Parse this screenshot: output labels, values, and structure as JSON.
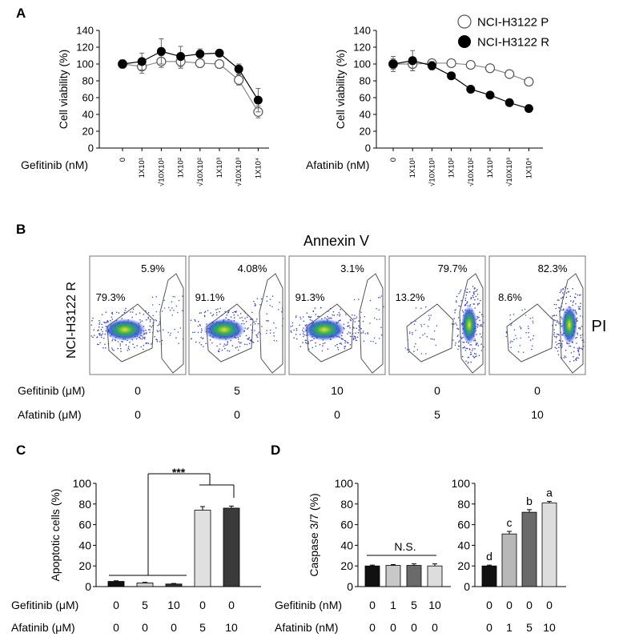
{
  "panel_labels": [
    "A",
    "B",
    "C",
    "D"
  ],
  "chart_data": [
    {
      "id": "A-left",
      "type": "line",
      "ylabel": "Cell viability (%)",
      "xlabel": "Gefitinib (nM)",
      "ylim": [
        0,
        140
      ],
      "yticks": [
        "0",
        "20",
        "40",
        "60",
        "80",
        "100",
        "120",
        "140"
      ],
      "categories": [
        "0",
        "1X10¹",
        "√10X10¹",
        "1X10²",
        "√10X10²",
        "1X10³",
        "√10X10³",
        "1X10⁴"
      ],
      "series": [
        {
          "name": "NCI-H3122 P",
          "marker": "open",
          "values": [
            100,
            97,
            103,
            103,
            101,
            100,
            81,
            43
          ],
          "errors": [
            5,
            8,
            7,
            8,
            5,
            3,
            6,
            7
          ]
        },
        {
          "name": "NCI-H3122 R",
          "marker": "filled",
          "values": [
            100,
            103,
            115,
            109,
            112,
            113,
            94,
            57
          ],
          "errors": [
            5,
            10,
            15,
            12,
            6,
            4,
            6,
            14
          ]
        }
      ]
    },
    {
      "id": "A-right",
      "type": "line",
      "ylabel": "Cell viability (%)",
      "xlabel": "Afatinib (nM)",
      "ylim": [
        0,
        140
      ],
      "yticks": [
        "0",
        "20",
        "40",
        "60",
        "80",
        "100",
        "120",
        "140"
      ],
      "categories": [
        "0",
        "1X10¹",
        "√10X10¹",
        "1X10²",
        "√10X10²",
        "1X10³",
        "√10X10³",
        "1X10⁴"
      ],
      "legend": [
        "NCI-H3122 P",
        "NCI-H3122 R"
      ],
      "series": [
        {
          "name": "NCI-H3122 P",
          "marker": "open",
          "values": [
            100,
            100,
            101,
            101,
            99,
            95,
            88,
            79
          ],
          "errors": [
            9,
            8,
            4,
            3,
            3,
            3,
            3,
            3
          ]
        },
        {
          "name": "NCI-H3122 R",
          "marker": "filled",
          "values": [
            100,
            104,
            98,
            86,
            70,
            63,
            54,
            47
          ],
          "errors": [
            6,
            12,
            5,
            4,
            3,
            3,
            3,
            3
          ]
        }
      ]
    },
    {
      "id": "B",
      "type": "scatter",
      "title": "Annexin V",
      "row_label": "NCI-H3122 R",
      "right_label": "PI",
      "condition_labels": [
        "Gefitinib (μM)",
        "Afatinib (μM)"
      ],
      "plots": [
        {
          "gefitinib": "0",
          "afatinib": "0",
          "upper_pct": "5.9%",
          "lower_pct": "79.3%",
          "cluster": "left"
        },
        {
          "gefitinib": "5",
          "afatinib": "0",
          "upper_pct": "4.08%",
          "lower_pct": "91.1%",
          "cluster": "left"
        },
        {
          "gefitinib": "10",
          "afatinib": "0",
          "upper_pct": "3.1%",
          "lower_pct": "91.3%",
          "cluster": "left"
        },
        {
          "gefitinib": "0",
          "afatinib": "5",
          "upper_pct": "79.7%",
          "lower_pct": "13.2%",
          "cluster": "right"
        },
        {
          "gefitinib": "0",
          "afatinib": "10",
          "upper_pct": "82.3%",
          "lower_pct": "8.6%",
          "cluster": "right"
        }
      ]
    },
    {
      "id": "C",
      "type": "bar",
      "ylabel": "Apoptotic cells (%)",
      "ylim": [
        0,
        100
      ],
      "yticks": [
        "0",
        "20",
        "40",
        "60",
        "80",
        "100"
      ],
      "values": [
        5,
        3.5,
        2.5,
        74,
        76
      ],
      "errors": [
        0.6,
        0.6,
        0.5,
        3.5,
        2
      ],
      "colors": [
        "#111111",
        "#d0d0d0",
        "#333333",
        "#e0e0e0",
        "#3a3a3a"
      ],
      "significance": "***",
      "condition_labels": [
        "Gefitinib (μM)",
        "Afatinib (μM)"
      ],
      "gefitinib": [
        "0",
        "5",
        "10",
        "0",
        "0"
      ],
      "afatinib": [
        "0",
        "0",
        "0",
        "5",
        "10"
      ]
    },
    {
      "id": "D-left",
      "type": "bar",
      "ylabel": "Caspase 3/7 (%)",
      "ylim": [
        0,
        100
      ],
      "yticks": [
        "0",
        "20",
        "40",
        "60",
        "80",
        "100"
      ],
      "values": [
        20,
        20.5,
        20.5,
        20
      ],
      "errors": [
        0.8,
        0.8,
        1.5,
        2
      ],
      "colors": [
        "#111111",
        "#c8c8c8",
        "#6a6a6a",
        "#dddddd"
      ],
      "annotation": "N.S.",
      "condition_labels": [
        "Gefitinib (nM)",
        "Afatinib (nM)"
      ],
      "gefitinib": [
        "0",
        "1",
        "5",
        "10"
      ],
      "afatinib": [
        "0",
        "0",
        "0",
        "0"
      ]
    },
    {
      "id": "D-right",
      "type": "bar",
      "ylim": [
        0,
        100
      ],
      "yticks": [
        "0",
        "20",
        "40",
        "60",
        "80",
        "100"
      ],
      "values": [
        20,
        51,
        72,
        81
      ],
      "errors": [
        0.8,
        2.5,
        2.5,
        1.5
      ],
      "colors": [
        "#111111",
        "#b8b8b8",
        "#6a6a6a",
        "#dddddd"
      ],
      "letters": [
        "d",
        "c",
        "b",
        "a"
      ],
      "gefitinib": [
        "0",
        "0",
        "0",
        "0"
      ],
      "afatinib": [
        "0",
        "1",
        "5",
        "10"
      ]
    }
  ]
}
